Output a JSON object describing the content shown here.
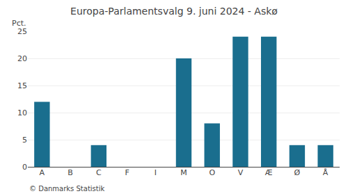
{
  "chart_data": {
    "type": "bar",
    "title": "Europa-Parlamentsvalg 9. juni 2024 - Askø",
    "categories": [
      "A",
      "B",
      "C",
      "F",
      "I",
      "M",
      "O",
      "V",
      "Æ",
      "Ø",
      "Å"
    ],
    "values": [
      12,
      0,
      4,
      0,
      0,
      20,
      8,
      24,
      24,
      4,
      4
    ],
    "color": "#1a6e8e",
    "ylabel": "Pct.",
    "annotations": [
      "© Danmarks Statistik"
    ],
    "ylim": [
      0,
      25
    ],
    "yticks": [
      0,
      5,
      10,
      15,
      20,
      25
    ],
    "grid": true
  }
}
